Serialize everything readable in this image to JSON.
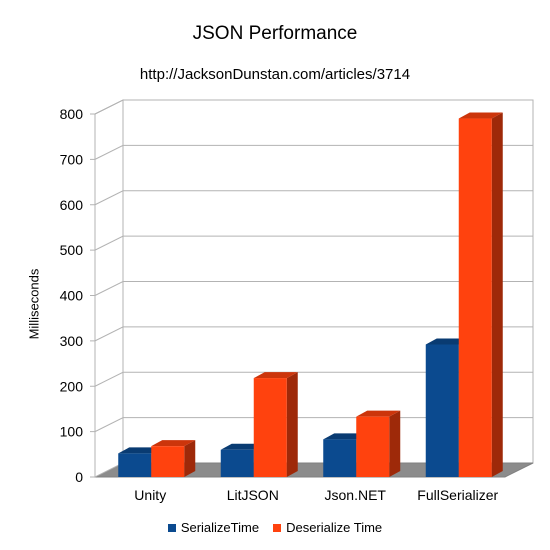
{
  "chart_data": {
    "type": "bar",
    "title": "JSON Performance",
    "subtitle": "http://JacksonDunstan.com/articles/3714",
    "xlabel": "",
    "ylabel": "Milliseconds",
    "ylim": [
      0,
      800
    ],
    "yticks": [
      "0",
      "100",
      "200",
      "300",
      "400",
      "500",
      "600",
      "700",
      "800"
    ],
    "categories": [
      "Unity",
      "LitJSON",
      "Json.NET",
      "FullSerializer"
    ],
    "series": [
      {
        "name": "SerializeTime",
        "values": [
          52,
          60,
          83,
          292
        ],
        "color": "#0b4a8f"
      },
      {
        "name": "Deserialize Time",
        "values": [
          68,
          218,
          133,
          790
        ],
        "color": "#ff420e"
      }
    ],
    "grid": true,
    "legend_position": "bottom"
  }
}
